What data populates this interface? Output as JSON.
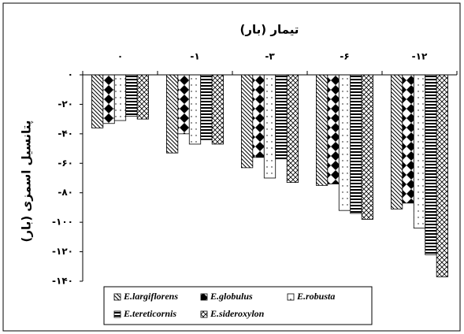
{
  "chart_data": {
    "type": "bar",
    "title": "تیمار (بار)",
    "y_label": "پتانسیل اسمزی (بار)",
    "categories": [
      "۰",
      "-۱",
      "-۳",
      "-۶",
      "-۱۲"
    ],
    "series": [
      {
        "name": "E.largiflorens",
        "color": "#000000",
        "values": [
          -36,
          -53,
          -63,
          -75,
          -91
        ]
      },
      {
        "name": "E.globulus",
        "color": "#000000",
        "values": [
          -33,
          -40,
          -56,
          -74,
          -87
        ]
      },
      {
        "name": "E.robusta",
        "color": "#000000",
        "values": [
          -31,
          -47,
          -70,
          -92,
          -104
        ]
      },
      {
        "name": "E.tereticornis",
        "color": "#000000",
        "values": [
          -28,
          -44,
          -57,
          -94,
          -122
        ]
      },
      {
        "name": "E.sideroxylon",
        "color": "#000000",
        "values": [
          -30,
          -47,
          -73,
          -98,
          -137
        ]
      }
    ],
    "ylim": [
      -140,
      0
    ],
    "yticks": [
      {
        "value": 0,
        "label": "۰"
      },
      {
        "value": -20,
        "label": "-۲۰"
      },
      {
        "value": -40,
        "label": "-۴۰"
      },
      {
        "value": -60,
        "label": "-۶۰"
      },
      {
        "value": -80,
        "label": "-۸۰"
      },
      {
        "value": -100,
        "label": "-۱۰۰"
      },
      {
        "value": -120,
        "label": "-۱۲۰"
      },
      {
        "value": -140,
        "label": "-۱۴۰"
      }
    ],
    "legend": "bottom"
  }
}
